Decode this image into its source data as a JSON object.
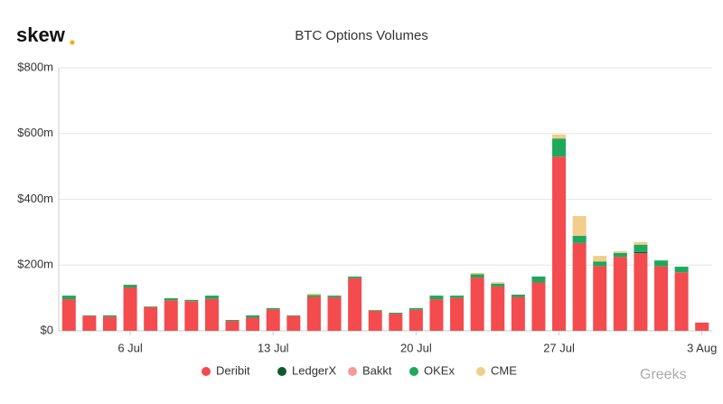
{
  "logo": "skew",
  "watermark": "Greeks",
  "chart_data": {
    "type": "bar",
    "stacked": true,
    "title": "BTC Options Volumes",
    "categories": [
      null,
      null,
      null,
      "6 Jul",
      null,
      null,
      null,
      null,
      null,
      null,
      "13 Jul",
      null,
      null,
      null,
      null,
      null,
      null,
      "20 Jul",
      null,
      null,
      null,
      null,
      null,
      null,
      "27 Jul",
      null,
      null,
      null,
      null,
      null,
      null,
      "3 Aug"
    ],
    "series": [
      {
        "name": "Deribit",
        "color": "#f44b4e",
        "values": [
          96,
          45,
          43,
          132,
          72,
          93,
          90,
          97,
          30,
          40,
          65,
          45,
          103,
          102,
          160,
          61,
          52,
          64,
          96,
          100,
          162,
          135,
          103,
          147,
          530,
          267,
          197,
          225,
          236,
          196,
          178,
          25
        ]
      },
      {
        "name": "LedgerX",
        "color": "#0d5a2e",
        "values": [
          0,
          0,
          0,
          0,
          0,
          0,
          0,
          0,
          0,
          0,
          0,
          0,
          0,
          0,
          0,
          0,
          0,
          0,
          0,
          0,
          0,
          0,
          0,
          0,
          0,
          0,
          0,
          0,
          4,
          0,
          0,
          0
        ]
      },
      {
        "name": "Bakkt",
        "color": "#f59a9a",
        "values": [
          0,
          0,
          0,
          0,
          0,
          0,
          0,
          0,
          0,
          0,
          0,
          0,
          0,
          0,
          0,
          0,
          0,
          0,
          0,
          0,
          0,
          0,
          0,
          0,
          0,
          0,
          0,
          0,
          0,
          0,
          0,
          0
        ]
      },
      {
        "name": "OKEx",
        "color": "#1ea85c",
        "values": [
          11,
          2,
          4,
          8,
          2,
          6,
          4,
          10,
          3,
          7,
          4,
          2,
          6,
          5,
          5,
          2,
          3,
          5,
          11,
          7,
          10,
          8,
          7,
          18,
          55,
          22,
          14,
          12,
          22,
          18,
          17,
          0
        ]
      },
      {
        "name": "CME",
        "color": "#f2cd8b",
        "values": [
          0,
          0,
          0,
          0,
          0,
          0,
          0,
          0,
          0,
          0,
          0,
          0,
          4,
          0,
          0,
          0,
          0,
          0,
          0,
          0,
          4,
          5,
          0,
          0,
          12,
          60,
          17,
          5,
          8,
          0,
          0,
          0
        ]
      }
    ],
    "ylim": [
      0,
      800
    ],
    "yticks": [
      {
        "value": 0,
        "label": "$0"
      },
      {
        "value": 200,
        "label": "$200m"
      },
      {
        "value": 400,
        "label": "$400m"
      },
      {
        "value": 600,
        "label": "$600m"
      },
      {
        "value": 800,
        "label": "$800m"
      }
    ],
    "grid": true,
    "legend": "bottom"
  }
}
